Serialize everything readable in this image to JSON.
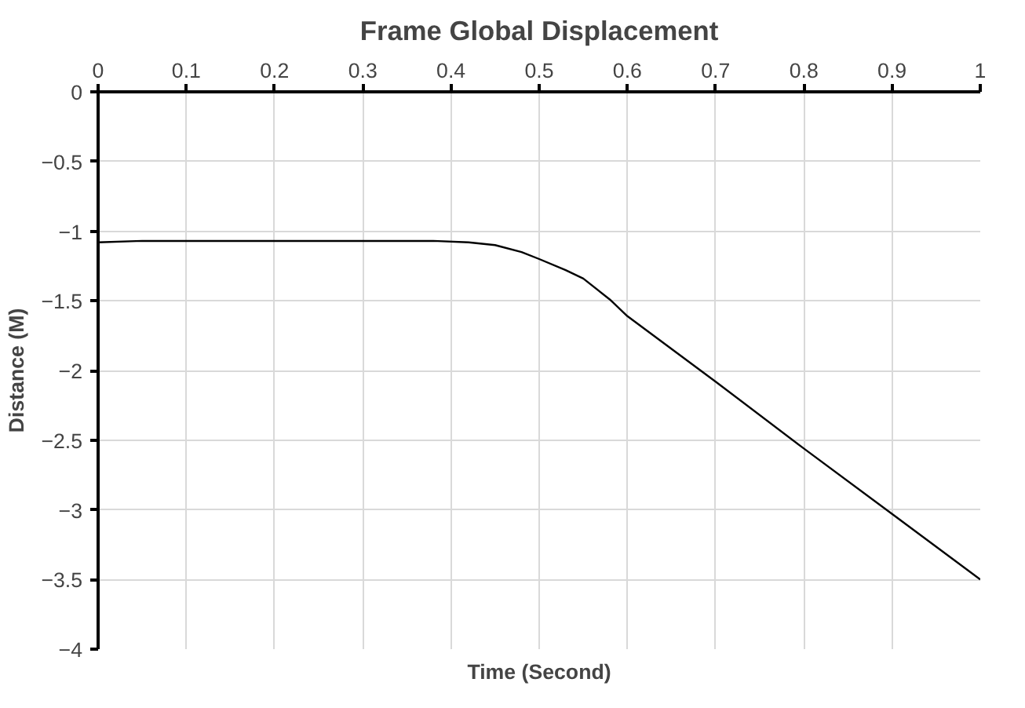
{
  "chart_data": {
    "type": "line",
    "title": "Frame Global Displacement",
    "xlabel": "Time (Second)",
    "ylabel": "Distance (M)",
    "x": [
      0,
      0.05,
      0.1,
      0.2,
      0.3,
      0.38,
      0.42,
      0.45,
      0.48,
      0.5,
      0.53,
      0.55,
      0.58,
      0.6,
      0.7,
      0.8,
      0.9,
      1.0
    ],
    "series": [
      {
        "color": "#000000",
        "values": [
          -1.08,
          -1.07,
          -1.07,
          -1.07,
          -1.07,
          -1.07,
          -1.08,
          -1.1,
          -1.15,
          -1.2,
          -1.28,
          -1.34,
          -1.49,
          -1.61,
          -2.08,
          -2.56,
          -3.03,
          -3.5
        ]
      }
    ],
    "xlim": [
      0,
      1
    ],
    "xticks": [
      0,
      0.1,
      0.2,
      0.3,
      0.4,
      0.5,
      0.6,
      0.7,
      0.8,
      0.9,
      1
    ],
    "ylim": [
      -4,
      0
    ],
    "yticks": [
      0,
      -0.5,
      -1,
      -1.5,
      -2,
      -2.5,
      -3,
      -3.5,
      -4
    ],
    "grid": true,
    "marker": "none",
    "line_style": "solid"
  }
}
